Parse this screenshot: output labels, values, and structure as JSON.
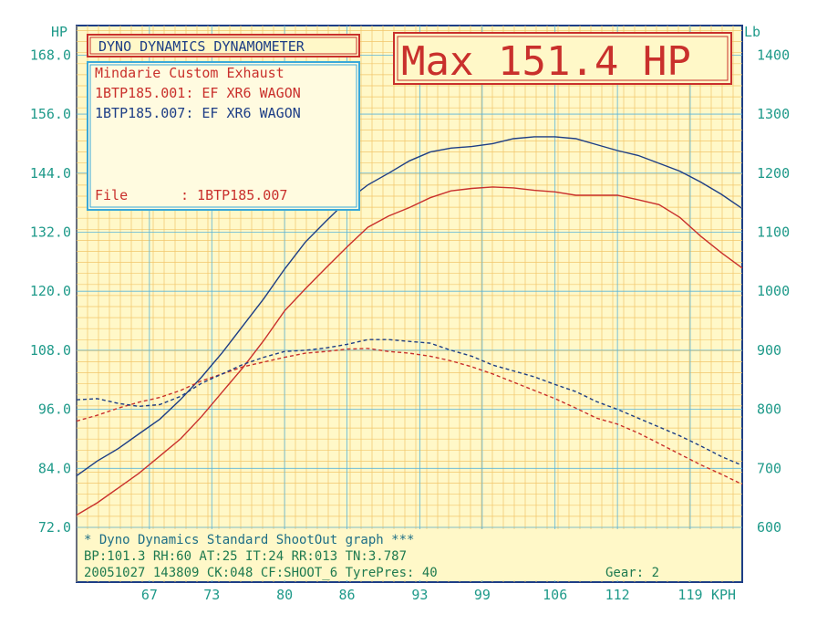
{
  "chart_data": {
    "type": "line",
    "title_box": "DYNO DYNAMICS DYNAMOMETER",
    "max_label": "Max 151.4 HP",
    "legend": {
      "header": "Mindarie Custom Exhaust",
      "runs": [
        {
          "text": "1BTP185.001: EF XR6 WAGON",
          "color": "#c9302c"
        },
        {
          "text": "1BTP185.007: EF XR6 WAGON",
          "color": "#1d3e86"
        }
      ],
      "file_label": "File",
      "file_value": ": 1BTP185.007"
    },
    "left_axis": {
      "unit": "HP",
      "ticks": [
        "72.0",
        "84.0",
        "96.0",
        "108.0",
        "120.0",
        "132.0",
        "144.0",
        "156.0",
        "168.0"
      ],
      "ylim": [
        72,
        174
      ]
    },
    "right_axis": {
      "unit": "Lb",
      "ticks": [
        "600",
        "700",
        "800",
        "900",
        "1000",
        "1100",
        "1200",
        "1300",
        "1400"
      ],
      "ylim": [
        600,
        1450
      ]
    },
    "x_axis": {
      "unit": "KPH",
      "ticks": [
        "67",
        "73",
        "80",
        "86",
        "93",
        "99",
        "106",
        "112",
        "119"
      ],
      "xlim": [
        60,
        124
      ]
    },
    "grid": true,
    "series": [
      {
        "name": "1BTP185.001 HP",
        "color": "#c9302c",
        "dash": false,
        "x": [
          60,
          62,
          64,
          66,
          68,
          70,
          72,
          74,
          76,
          78,
          80,
          82,
          84,
          86,
          88,
          90,
          92,
          94,
          96,
          98,
          100,
          102,
          104,
          106,
          108,
          110,
          112,
          114,
          116,
          118,
          120,
          122,
          124
        ],
        "y": [
          74.5,
          77,
          80,
          83,
          86.5,
          90,
          94.5,
          99.5,
          104.5,
          110,
          116,
          120.5,
          124.8,
          129,
          133,
          135.3,
          137,
          139,
          140.4,
          140.9,
          141.2,
          141,
          140.5,
          140.2,
          139.5,
          139.5,
          139.5,
          138.6,
          137.6,
          135,
          131.2,
          127.8,
          124.7
        ]
      },
      {
        "name": "1BTP185.007 HP",
        "color": "#1d3e86",
        "dash": false,
        "x": [
          60,
          62,
          64,
          66,
          68,
          70,
          72,
          74,
          76,
          78,
          80,
          82,
          84,
          86,
          88,
          90,
          92,
          94,
          96,
          98,
          100,
          102,
          104,
          106,
          108,
          110,
          112,
          114,
          116,
          118,
          120,
          122,
          124
        ],
        "y": [
          82.5,
          85.5,
          88,
          91,
          94,
          98,
          102.5,
          107.5,
          113,
          118.5,
          124.5,
          130,
          134.3,
          138.4,
          141.6,
          144,
          146.5,
          148.3,
          149.1,
          149.4,
          150,
          151,
          151.4,
          151.4,
          151,
          149.8,
          148.6,
          147.6,
          146,
          144.4,
          142.2,
          139.7,
          136.8
        ]
      },
      {
        "name": "1BTP185.001 Lb",
        "color": "#c9302c",
        "dash": true,
        "x": [
          60,
          62,
          64,
          66,
          68,
          70,
          72,
          74,
          76,
          78,
          80,
          82,
          84,
          86,
          88,
          90,
          92,
          94,
          96,
          98,
          100,
          102,
          104,
          106,
          108,
          110,
          112,
          114,
          116,
          118,
          120,
          122,
          124
        ],
        "y": [
          780,
          790,
          802,
          812,
          820,
          832,
          848,
          860,
          872,
          880,
          888,
          895,
          898,
          902,
          903,
          898,
          895,
          890,
          882,
          872,
          860,
          846,
          832,
          818,
          802,
          785,
          775,
          760,
          742,
          724,
          706,
          690,
          673
        ]
      },
      {
        "name": "1BTP185.007 Lb",
        "color": "#1d3e86",
        "dash": true,
        "x": [
          60,
          62,
          64,
          66,
          68,
          70,
          72,
          74,
          76,
          78,
          80,
          82,
          84,
          86,
          88,
          90,
          92,
          94,
          96,
          98,
          100,
          102,
          104,
          106,
          108,
          110,
          112,
          114,
          116,
          118,
          120,
          122,
          124
        ],
        "y": [
          816,
          818,
          810,
          805,
          808,
          822,
          844,
          860,
          876,
          888,
          898,
          900,
          904,
          910,
          918,
          918,
          915,
          912,
          900,
          890,
          875,
          865,
          855,
          842,
          830,
          813,
          800,
          785,
          770,
          755,
          738,
          720,
          705
        ]
      }
    ]
  },
  "footer": {
    "line1": "* Dyno Dynamics Standard ShootOut graph ***",
    "line2": "BP:101.3 RH:60 AT:25 IT:24  RR:013 TN:3.787",
    "line3a": "20051027 143809 CK:048 CF:SHOOT_6  TyrePres: 40",
    "line3b": "Gear: 2"
  }
}
